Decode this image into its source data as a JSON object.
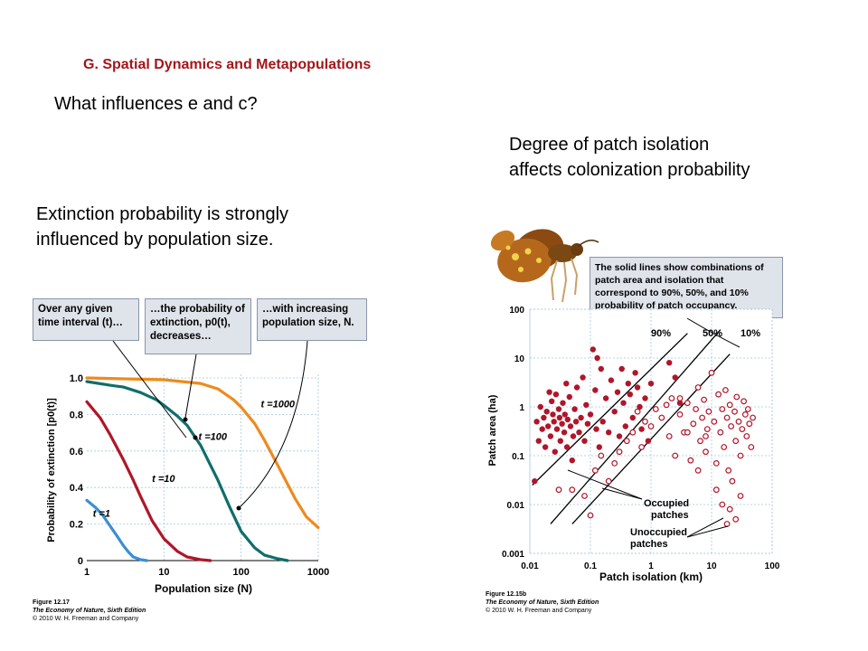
{
  "slide": {
    "title": "G. Spatial Dynamics and Metapopulations",
    "question": "What influences e and c?",
    "extinction_caption": [
      "Extinction probability is strongly",
      "influenced by population size."
    ],
    "isolation_caption": [
      "Degree of patch isolation",
      "affects colonization probability"
    ]
  },
  "left_figure": {
    "callouts": [
      "Over any given time interval (t)…",
      "…the probability of extinction, p0(t), decreases…",
      "…with increasing population size, N."
    ],
    "credit": {
      "figure": "Figure 12.17",
      "book": "The Economy of Nature, Sixth Edition",
      "copyright": "© 2010 W. H. Freeman and Company"
    }
  },
  "right_figure": {
    "callout": "The solid lines show combinations of patch area and isolation that correspond to 90%, 50%, and 10% probability of patch occupancy.",
    "legend": {
      "occupied": [
        "Occupied",
        "patches"
      ],
      "unoccupied": [
        "Unoccupied",
        "patches"
      ]
    },
    "credit": {
      "figure": "Figure 12.15b",
      "book": "The Economy of Nature, Sixth Edition",
      "copyright": "© 2010 W. H. Freeman and Company"
    },
    "image": "butterfly-photo"
  },
  "chart_data": [
    {
      "type": "line",
      "xlabel": "Population size (N)",
      "ylabel": "Probability of extinction [p0(t)]",
      "xscale": "log",
      "xlim": [
        1,
        1000
      ],
      "ylim": [
        0,
        1.0
      ],
      "xticks": [
        "1",
        "10",
        "100",
        "1000"
      ],
      "yticks": [
        "0",
        "0.2",
        "0.4",
        "0.6",
        "0.8",
        "1.0"
      ],
      "grid": true,
      "series": [
        {
          "name": "t =1",
          "color": "#3b8fd1",
          "points": [
            [
              1,
              0.33
            ],
            [
              1.3,
              0.29
            ],
            [
              1.6,
              0.25
            ],
            [
              2,
              0.19
            ],
            [
              2.5,
              0.13
            ],
            [
              3,
              0.08
            ],
            [
              3.5,
              0.045
            ],
            [
              4,
              0.02
            ],
            [
              5,
              0.005
            ],
            [
              6,
              0
            ]
          ]
        },
        {
          "name": "t =10",
          "color": "#b0162a",
          "points": [
            [
              1,
              0.87
            ],
            [
              1.5,
              0.78
            ],
            [
              2,
              0.69
            ],
            [
              3,
              0.55
            ],
            [
              4,
              0.44
            ],
            [
              5,
              0.35
            ],
            [
              7,
              0.22
            ],
            [
              10,
              0.12
            ],
            [
              15,
              0.05
            ],
            [
              20,
              0.02
            ],
            [
              30,
              0.005
            ],
            [
              40,
              0
            ]
          ]
        },
        {
          "name": "t =100",
          "color": "#0f6e6a",
          "points": [
            [
              1,
              0.98
            ],
            [
              2,
              0.96
            ],
            [
              3,
              0.95
            ],
            [
              5,
              0.92
            ],
            [
              8,
              0.88
            ],
            [
              10,
              0.85
            ],
            [
              15,
              0.79
            ],
            [
              20,
              0.74
            ],
            [
              30,
              0.63
            ],
            [
              50,
              0.44
            ],
            [
              70,
              0.3
            ],
            [
              100,
              0.16
            ],
            [
              150,
              0.07
            ],
            [
              200,
              0.03
            ],
            [
              300,
              0.01
            ],
            [
              400,
              0
            ]
          ]
        },
        {
          "name": "t =1000",
          "color": "#ee8a1e",
          "points": [
            [
              1,
              1.0
            ],
            [
              10,
              0.99
            ],
            [
              30,
              0.97
            ],
            [
              50,
              0.94
            ],
            [
              80,
              0.88
            ],
            [
              100,
              0.84
            ],
            [
              150,
              0.75
            ],
            [
              200,
              0.66
            ],
            [
              300,
              0.52
            ],
            [
              500,
              0.34
            ],
            [
              700,
              0.24
            ],
            [
              1000,
              0.18
            ]
          ]
        }
      ],
      "series_labels": [
        {
          "text": "t =1",
          "x": 1.2,
          "y": 0.26
        },
        {
          "text": "t =10",
          "x": 7,
          "y": 0.45
        },
        {
          "text": "t =100",
          "x": 28,
          "y": 0.68
        },
        {
          "text": "t =1000",
          "x": 180,
          "y": 0.86
        }
      ]
    },
    {
      "type": "scatter",
      "xlabel": "Patch isolation (km)",
      "ylabel": "Patch area (ha)",
      "xscale": "log",
      "yscale": "log",
      "xlim": [
        0.01,
        100
      ],
      "ylim": [
        0.001,
        100
      ],
      "xticks": [
        "0.01",
        "0.1",
        "1",
        "10",
        "100"
      ],
      "yticks": [
        "0.001",
        "0.01",
        "0.1",
        "1",
        "10",
        "100"
      ],
      "grid": true,
      "lines": [
        {
          "name": "90%",
          "points": [
            [
              0.011,
              0.025
            ],
            [
              4,
              32
            ]
          ]
        },
        {
          "name": "50%",
          "points": [
            [
              0.022,
              0.004
            ],
            [
              14,
              38
            ]
          ]
        },
        {
          "name": "10%",
          "points": [
            [
              0.05,
              0.004
            ],
            [
              20,
              12
            ]
          ]
        }
      ],
      "occupied": [
        [
          0.012,
          0.03
        ],
        [
          0.013,
          0.5
        ],
        [
          0.014,
          0.2
        ],
        [
          0.015,
          1.0
        ],
        [
          0.016,
          0.35
        ],
        [
          0.017,
          0.6
        ],
        [
          0.018,
          0.15
        ],
        [
          0.019,
          0.8
        ],
        [
          0.02,
          0.4
        ],
        [
          0.021,
          2.0
        ],
        [
          0.022,
          0.25
        ],
        [
          0.023,
          1.3
        ],
        [
          0.024,
          0.7
        ],
        [
          0.025,
          0.5
        ],
        [
          0.026,
          0.12
        ],
        [
          0.027,
          1.8
        ],
        [
          0.028,
          0.35
        ],
        [
          0.03,
          0.9
        ],
        [
          0.031,
          0.6
        ],
        [
          0.032,
          0.2
        ],
        [
          0.034,
          0.45
        ],
        [
          0.035,
          1.2
        ],
        [
          0.037,
          0.3
        ],
        [
          0.038,
          0.7
        ],
        [
          0.04,
          3.0
        ],
        [
          0.041,
          0.15
        ],
        [
          0.042,
          0.55
        ],
        [
          0.045,
          1.6
        ],
        [
          0.047,
          0.4
        ],
        [
          0.05,
          0.08
        ],
        [
          0.052,
          0.25
        ],
        [
          0.055,
          0.9
        ],
        [
          0.058,
          0.5
        ],
        [
          0.06,
          2.5
        ],
        [
          0.065,
          0.3
        ],
        [
          0.07,
          0.6
        ],
        [
          0.075,
          4.0
        ],
        [
          0.08,
          0.2
        ],
        [
          0.085,
          1.1
        ],
        [
          0.09,
          0.45
        ],
        [
          0.1,
          0.7
        ],
        [
          0.11,
          15
        ],
        [
          0.12,
          2.2
        ],
        [
          0.125,
          0.35
        ],
        [
          0.13,
          10
        ],
        [
          0.14,
          0.15
        ],
        [
          0.15,
          6
        ],
        [
          0.16,
          0.5
        ],
        [
          0.18,
          1.5
        ],
        [
          0.2,
          0.3
        ],
        [
          0.22,
          3.5
        ],
        [
          0.25,
          0.8
        ],
        [
          0.28,
          2.0
        ],
        [
          0.3,
          0.25
        ],
        [
          0.33,
          6
        ],
        [
          0.35,
          1.2
        ],
        [
          0.38,
          0.4
        ],
        [
          0.42,
          3.0
        ],
        [
          0.45,
          1.8
        ],
        [
          0.5,
          0.6
        ],
        [
          0.55,
          5
        ],
        [
          0.6,
          2.5
        ],
        [
          0.65,
          1.0
        ],
        [
          0.7,
          0.35
        ],
        [
          0.8,
          1.5
        ],
        [
          0.9,
          0.2
        ],
        [
          1.0,
          3.0
        ],
        [
          2.0,
          8
        ],
        [
          2.5,
          4
        ],
        [
          3.0,
          1.2
        ]
      ],
      "unoccupied": [
        [
          0.03,
          0.02
        ],
        [
          0.05,
          0.02
        ],
        [
          0.08,
          0.015
        ],
        [
          0.1,
          0.006
        ],
        [
          0.12,
          0.05
        ],
        [
          0.15,
          0.1
        ],
        [
          0.2,
          0.03
        ],
        [
          0.25,
          0.07
        ],
        [
          0.3,
          0.12
        ],
        [
          0.4,
          0.2
        ],
        [
          0.5,
          0.3
        ],
        [
          0.6,
          0.8
        ],
        [
          0.7,
          0.15
        ],
        [
          0.8,
          0.5
        ],
        [
          1.0,
          0.4
        ],
        [
          1.2,
          0.9
        ],
        [
          1.5,
          0.6
        ],
        [
          1.8,
          1.1
        ],
        [
          2.0,
          0.25
        ],
        [
          2.2,
          1.5
        ],
        [
          2.5,
          0.1
        ],
        [
          3.0,
          0.7
        ],
        [
          3.5,
          0.3
        ],
        [
          4.0,
          1.2
        ],
        [
          4.5,
          0.08
        ],
        [
          5.0,
          0.45
        ],
        [
          5.5,
          0.9
        ],
        [
          6.0,
          2.5
        ],
        [
          6.5,
          0.2
        ],
        [
          7.0,
          0.6
        ],
        [
          7.5,
          1.4
        ],
        [
          8.0,
          0.12
        ],
        [
          8.5,
          0.35
        ],
        [
          9.0,
          0.8
        ],
        [
          10,
          5
        ],
        [
          11,
          0.5
        ],
        [
          12,
          0.07
        ],
        [
          13,
          1.8
        ],
        [
          14,
          0.3
        ],
        [
          15,
          0.9
        ],
        [
          16,
          0.15
        ],
        [
          17,
          2.2
        ],
        [
          18,
          0.6
        ],
        [
          19,
          0.05
        ],
        [
          20,
          1.1
        ],
        [
          21,
          0.4
        ],
        [
          22,
          0.03
        ],
        [
          24,
          0.8
        ],
        [
          25,
          0.2
        ],
        [
          26,
          1.6
        ],
        [
          28,
          0.5
        ],
        [
          30,
          0.1
        ],
        [
          32,
          0.35
        ],
        [
          34,
          1.3
        ],
        [
          36,
          0.7
        ],
        [
          38,
          0.25
        ],
        [
          40,
          0.9
        ],
        [
          42,
          0.45
        ],
        [
          45,
          0.15
        ],
        [
          48,
          0.6
        ],
        [
          12,
          0.02
        ],
        [
          15,
          0.01
        ],
        [
          20,
          0.008
        ],
        [
          25,
          0.005
        ],
        [
          18,
          0.004
        ],
        [
          30,
          0.015
        ],
        [
          8,
          0.25
        ],
        [
          6,
          0.05
        ],
        [
          4,
          0.3
        ],
        [
          3,
          1.5
        ]
      ]
    }
  ]
}
